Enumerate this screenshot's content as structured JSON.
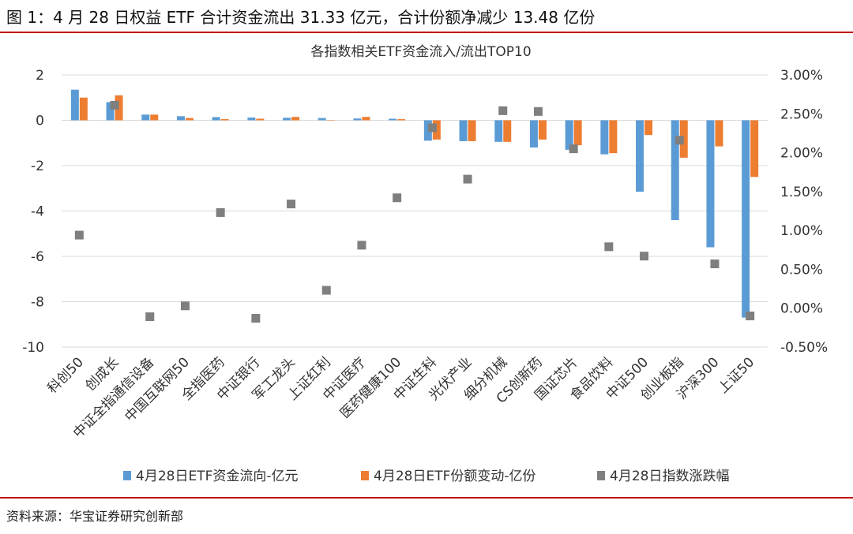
{
  "figure_title": "图 1：4 月 28 日权益 ETF 合计资金流出 31.33 亿元，合计份额净减少 13.48 亿份",
  "source": "资料来源：华宝证券研究创新部",
  "colors": {
    "rule": "#c00000",
    "flow": "#5b9bd5",
    "share": "#ed7d31",
    "change": "#7f7f7f",
    "grid": "#d9d9d9"
  },
  "chart_data": {
    "type": "bar",
    "title": "各指数相关ETF资金流入/流出TOP10",
    "categories": [
      "科创50",
      "创成长",
      "中证全指通信设备",
      "中国互联网50",
      "全指医药",
      "中证银行",
      "军工龙头",
      "上证红利",
      "中证医疗",
      "医药健康100",
      "中证生科",
      "光伏产业",
      "细分机械",
      "CS创新药",
      "国证芯片",
      "食品饮料",
      "中证500",
      "创业板指",
      "沪深300",
      "上证50"
    ],
    "y_left": {
      "min": -10,
      "max": 2,
      "step": 2,
      "ticks": [
        "2",
        "0",
        "-2",
        "-4",
        "-6",
        "-8",
        "-10"
      ]
    },
    "y_right": {
      "min": -0.5,
      "max": 3.0,
      "step": 0.5,
      "unit": "%",
      "ticks": [
        "3.00%",
        "2.50%",
        "2.00%",
        "1.50%",
        "1.00%",
        "0.50%",
        "0.00%",
        "-0.50%"
      ]
    },
    "grid": true,
    "legend_position": "bottom",
    "series": [
      {
        "name": "4月28日ETF资金流向-亿元",
        "kind": "bar",
        "axis": "left",
        "values": [
          1.35,
          0.8,
          0.25,
          0.18,
          0.14,
          0.12,
          0.11,
          0.1,
          0.08,
          0.07,
          -0.9,
          -0.92,
          -0.95,
          -1.2,
          -1.3,
          -1.5,
          -3.15,
          -4.4,
          -5.6,
          -8.7
        ]
      },
      {
        "name": "4月28日ETF份额变动-亿份",
        "kind": "bar",
        "axis": "left",
        "values": [
          1.0,
          1.1,
          0.25,
          0.1,
          0.05,
          0.07,
          0.15,
          0.0,
          0.15,
          0.05,
          -0.85,
          -0.92,
          -0.95,
          -0.85,
          -1.1,
          -1.45,
          -0.65,
          -1.65,
          -1.15,
          -2.5
        ]
      },
      {
        "name": "4月28日指数涨跌幅",
        "kind": "scatter",
        "axis": "right",
        "values": [
          0.94,
          2.61,
          -0.11,
          0.03,
          1.23,
          -0.13,
          1.34,
          0.23,
          0.81,
          1.42,
          2.32,
          1.66,
          2.54,
          2.53,
          2.05,
          0.79,
          0.67,
          2.16,
          0.57,
          -0.1
        ]
      }
    ]
  }
}
